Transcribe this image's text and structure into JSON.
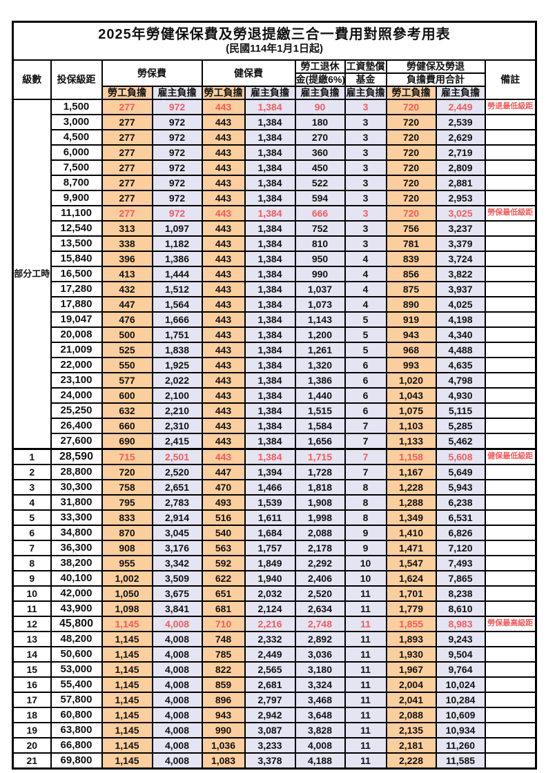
{
  "title": "2025年勞健保保費及勞退提繳三合一費用對照參考用表",
  "subtitle": "(民國114年1月1日起)",
  "header": {
    "level": "級數",
    "bracket": "投保級距",
    "labor_ins": "勞保費",
    "health_ins": "健保費",
    "pension_line1": "勞工退休",
    "pension_line2": "金(提繳6%)",
    "wage_fund_line1": "工資墊償",
    "wage_fund_line2": "基金",
    "total_line1": "勞健保及勞退",
    "total_line2": "負擔費用合計",
    "remark": "備註",
    "employee": "勞工負擔",
    "employer": "雇主負擔"
  },
  "colors": {
    "employee_bg": "#fbce9e",
    "employer_bg": "#e4e4f2",
    "highlight_text": "#f25c5c",
    "border": "#000000"
  },
  "part_time_label": "部分工時",
  "part_time_rowspan": 23,
  "rows": [
    {
      "level": "",
      "bracket": "1,500",
      "values": [
        "277",
        "972",
        "443",
        "1,384",
        "90",
        "3",
        "720",
        "2,449"
      ],
      "remark": "勞退最低級距",
      "hl": true
    },
    {
      "level": "",
      "bracket": "3,000",
      "values": [
        "277",
        "972",
        "443",
        "1,384",
        "180",
        "3",
        "720",
        "2,539"
      ],
      "remark": ""
    },
    {
      "level": "",
      "bracket": "4,500",
      "values": [
        "277",
        "972",
        "443",
        "1,384",
        "270",
        "3",
        "720",
        "2,629"
      ],
      "remark": ""
    },
    {
      "level": "",
      "bracket": "6,000",
      "values": [
        "277",
        "972",
        "443",
        "1,384",
        "360",
        "3",
        "720",
        "2,719"
      ],
      "remark": ""
    },
    {
      "level": "",
      "bracket": "7,500",
      "values": [
        "277",
        "972",
        "443",
        "1,384",
        "450",
        "3",
        "720",
        "2,809"
      ],
      "remark": ""
    },
    {
      "level": "",
      "bracket": "8,700",
      "values": [
        "277",
        "972",
        "443",
        "1,384",
        "522",
        "3",
        "720",
        "2,881"
      ],
      "remark": ""
    },
    {
      "level": "",
      "bracket": "9,900",
      "values": [
        "277",
        "972",
        "443",
        "1,384",
        "594",
        "3",
        "720",
        "2,953"
      ],
      "remark": ""
    },
    {
      "level": "",
      "bracket": "11,100",
      "values": [
        "277",
        "972",
        "443",
        "1,384",
        "666",
        "3",
        "720",
        "3,025"
      ],
      "remark": "勞保最低級距",
      "hl": true
    },
    {
      "level": "",
      "bracket": "12,540",
      "values": [
        "313",
        "1,097",
        "443",
        "1,384",
        "752",
        "3",
        "756",
        "3,237"
      ],
      "remark": ""
    },
    {
      "level": "",
      "bracket": "13,500",
      "values": [
        "338",
        "1,182",
        "443",
        "1,384",
        "810",
        "3",
        "781",
        "3,379"
      ],
      "remark": ""
    },
    {
      "level": "",
      "bracket": "15,840",
      "values": [
        "396",
        "1,386",
        "443",
        "1,384",
        "950",
        "4",
        "839",
        "3,724"
      ],
      "remark": ""
    },
    {
      "level": "",
      "bracket": "16,500",
      "values": [
        "413",
        "1,444",
        "443",
        "1,384",
        "990",
        "4",
        "856",
        "3,822"
      ],
      "remark": ""
    },
    {
      "level": "",
      "bracket": "17,280",
      "values": [
        "432",
        "1,512",
        "443",
        "1,384",
        "1,037",
        "4",
        "875",
        "3,937"
      ],
      "remark": ""
    },
    {
      "level": "",
      "bracket": "17,880",
      "values": [
        "447",
        "1,564",
        "443",
        "1,384",
        "1,073",
        "4",
        "890",
        "4,025"
      ],
      "remark": ""
    },
    {
      "level": "",
      "bracket": "19,047",
      "values": [
        "476",
        "1,666",
        "443",
        "1,384",
        "1,143",
        "5",
        "919",
        "4,198"
      ],
      "remark": ""
    },
    {
      "level": "",
      "bracket": "20,008",
      "values": [
        "500",
        "1,751",
        "443",
        "1,384",
        "1,200",
        "5",
        "943",
        "4,340"
      ],
      "remark": ""
    },
    {
      "level": "",
      "bracket": "21,009",
      "values": [
        "525",
        "1,838",
        "443",
        "1,384",
        "1,261",
        "5",
        "968",
        "4,488"
      ],
      "remark": ""
    },
    {
      "level": "",
      "bracket": "22,000",
      "values": [
        "550",
        "1,925",
        "443",
        "1,384",
        "1,320",
        "6",
        "993",
        "4,635"
      ],
      "remark": ""
    },
    {
      "level": "",
      "bracket": "23,100",
      "values": [
        "577",
        "2,022",
        "443",
        "1,384",
        "1,386",
        "6",
        "1,020",
        "4,798"
      ],
      "remark": ""
    },
    {
      "level": "",
      "bracket": "24,000",
      "values": [
        "600",
        "2,100",
        "443",
        "1,384",
        "1,440",
        "6",
        "1,043",
        "4,930"
      ],
      "remark": ""
    },
    {
      "level": "",
      "bracket": "25,250",
      "values": [
        "632",
        "2,210",
        "443",
        "1,384",
        "1,515",
        "6",
        "1,075",
        "5,115"
      ],
      "remark": ""
    },
    {
      "level": "",
      "bracket": "26,400",
      "values": [
        "660",
        "2,310",
        "443",
        "1,384",
        "1,584",
        "7",
        "1,103",
        "5,285"
      ],
      "remark": ""
    },
    {
      "level": "",
      "bracket": "27,600",
      "values": [
        "690",
        "2,415",
        "443",
        "1,384",
        "1,656",
        "7",
        "1,133",
        "5,462"
      ],
      "remark": ""
    },
    {
      "level": "1",
      "bracket": "28,590",
      "values": [
        "715",
        "2,501",
        "443",
        "1,384",
        "1,715",
        "7",
        "1,158",
        "5,608"
      ],
      "remark": "健保最低級距",
      "hl": true,
      "bold": true,
      "thick": true
    },
    {
      "level": "2",
      "bracket": "28,800",
      "values": [
        "720",
        "2,520",
        "447",
        "1,394",
        "1,728",
        "7",
        "1,167",
        "5,649"
      ],
      "remark": ""
    },
    {
      "level": "3",
      "bracket": "30,300",
      "values": [
        "758",
        "2,651",
        "470",
        "1,466",
        "1,818",
        "8",
        "1,228",
        "5,943"
      ],
      "remark": ""
    },
    {
      "level": "4",
      "bracket": "31,800",
      "values": [
        "795",
        "2,783",
        "493",
        "1,539",
        "1,908",
        "8",
        "1,288",
        "6,238"
      ],
      "remark": ""
    },
    {
      "level": "5",
      "bracket": "33,300",
      "values": [
        "833",
        "2,914",
        "516",
        "1,611",
        "1,998",
        "8",
        "1,349",
        "6,531"
      ],
      "remark": ""
    },
    {
      "level": "6",
      "bracket": "34,800",
      "values": [
        "870",
        "3,045",
        "540",
        "1,684",
        "2,088",
        "9",
        "1,410",
        "6,826"
      ],
      "remark": ""
    },
    {
      "level": "7",
      "bracket": "36,300",
      "values": [
        "908",
        "3,176",
        "563",
        "1,757",
        "2,178",
        "9",
        "1,471",
        "7,120"
      ],
      "remark": ""
    },
    {
      "level": "8",
      "bracket": "38,200",
      "values": [
        "955",
        "3,342",
        "592",
        "1,849",
        "2,292",
        "10",
        "1,547",
        "7,493"
      ],
      "remark": ""
    },
    {
      "level": "9",
      "bracket": "40,100",
      "values": [
        "1,002",
        "3,509",
        "622",
        "1,940",
        "2,406",
        "10",
        "1,624",
        "7,865"
      ],
      "remark": ""
    },
    {
      "level": "10",
      "bracket": "42,000",
      "values": [
        "1,050",
        "3,675",
        "651",
        "2,032",
        "2,520",
        "11",
        "1,701",
        "8,238"
      ],
      "remark": ""
    },
    {
      "level": "11",
      "bracket": "43,900",
      "values": [
        "1,098",
        "3,841",
        "681",
        "2,124",
        "2,634",
        "11",
        "1,779",
        "8,610"
      ],
      "remark": ""
    },
    {
      "level": "12",
      "bracket": "45,800",
      "values": [
        "1,145",
        "4,008",
        "710",
        "2,216",
        "2,748",
        "11",
        "1,855",
        "8,983"
      ],
      "remark": "勞保最高級距",
      "hl": true,
      "bold": true
    },
    {
      "level": "13",
      "bracket": "48,200",
      "values": [
        "1,145",
        "4,008",
        "748",
        "2,332",
        "2,892",
        "11",
        "1,893",
        "9,243"
      ],
      "remark": ""
    },
    {
      "level": "14",
      "bracket": "50,600",
      "values": [
        "1,145",
        "4,008",
        "785",
        "2,449",
        "3,036",
        "11",
        "1,930",
        "9,504"
      ],
      "remark": ""
    },
    {
      "level": "15",
      "bracket": "53,000",
      "values": [
        "1,145",
        "4,008",
        "822",
        "2,565",
        "3,180",
        "11",
        "1,967",
        "9,764"
      ],
      "remark": ""
    },
    {
      "level": "16",
      "bracket": "55,400",
      "values": [
        "1,145",
        "4,008",
        "859",
        "2,681",
        "3,324",
        "11",
        "2,004",
        "10,024"
      ],
      "remark": ""
    },
    {
      "level": "17",
      "bracket": "57,800",
      "values": [
        "1,145",
        "4,008",
        "896",
        "2,797",
        "3,468",
        "11",
        "2,041",
        "10,284"
      ],
      "remark": ""
    },
    {
      "level": "18",
      "bracket": "60,800",
      "values": [
        "1,145",
        "4,008",
        "943",
        "2,942",
        "3,648",
        "11",
        "2,088",
        "10,609"
      ],
      "remark": ""
    },
    {
      "level": "19",
      "bracket": "63,800",
      "values": [
        "1,145",
        "4,008",
        "990",
        "3,087",
        "3,828",
        "11",
        "2,135",
        "10,934"
      ],
      "remark": ""
    },
    {
      "level": "20",
      "bracket": "66,800",
      "values": [
        "1,145",
        "4,008",
        "1,036",
        "3,233",
        "4,008",
        "11",
        "2,181",
        "11,260"
      ],
      "remark": ""
    },
    {
      "level": "21",
      "bracket": "69,800",
      "values": [
        "1,145",
        "4,008",
        "1,083",
        "3,378",
        "4,188",
        "11",
        "2,228",
        "11,585"
      ],
      "remark": ""
    }
  ]
}
